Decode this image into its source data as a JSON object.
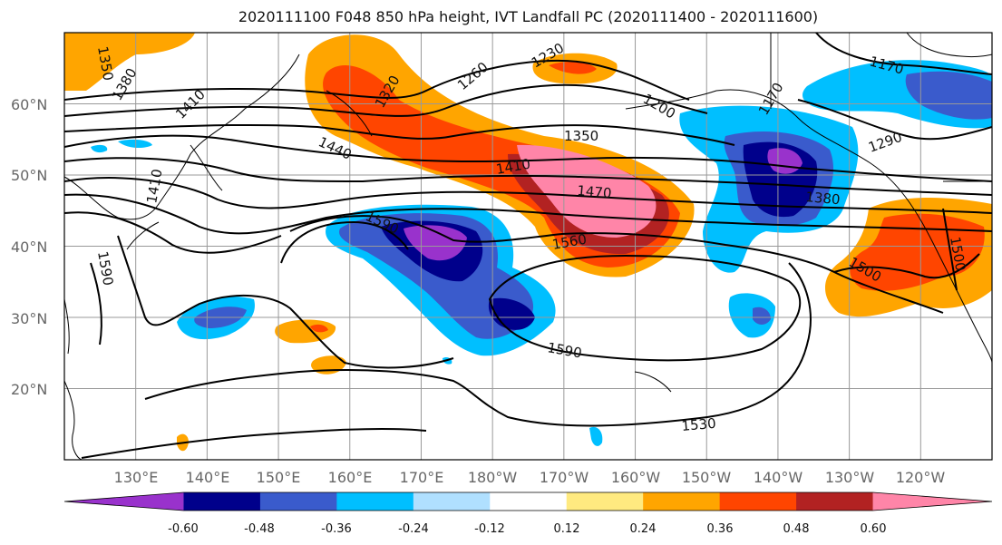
{
  "title": "2020111100 F048 850 hPa height, IVT Landfall PC (2020111400 - 2020111600)",
  "map": {
    "lon_range": [
      120,
      250
    ],
    "lat_range": [
      10,
      70
    ],
    "lat_ticks": [
      "60°N",
      "50°N",
      "40°N",
      "30°N",
      "20°N"
    ],
    "lon_ticks": [
      "130°E",
      "140°E",
      "150°E",
      "160°E",
      "170°E",
      "180°W",
      "170°W",
      "160°W",
      "150°W",
      "140°W",
      "130°W",
      "120°W"
    ],
    "grid": true
  },
  "height_contour_labels": [
    "1350",
    "1380",
    "1410",
    "1410",
    "1440",
    "1320",
    "1260",
    "1230",
    "1200",
    "1170",
    "1170",
    "1350",
    "1410",
    "1470",
    "1380",
    "1290",
    "1590",
    "1560",
    "1590",
    "1530",
    "1500",
    "1500",
    "1590"
  ],
  "colorbar": {
    "ticks": [
      "-0.60",
      "-0.48",
      "-0.36",
      "-0.24",
      "-0.12",
      "0.12",
      "0.24",
      "0.36",
      "0.48",
      "0.60"
    ],
    "colors": [
      "#9932CC",
      "#00008B",
      "#3A5BCC",
      "#00BFFF",
      "#B0E0FF",
      "#FFFFFF",
      "#FFEA80",
      "#FFA500",
      "#FF4500",
      "#B22222",
      "#FF85A8"
    ],
    "extend": "both"
  }
}
